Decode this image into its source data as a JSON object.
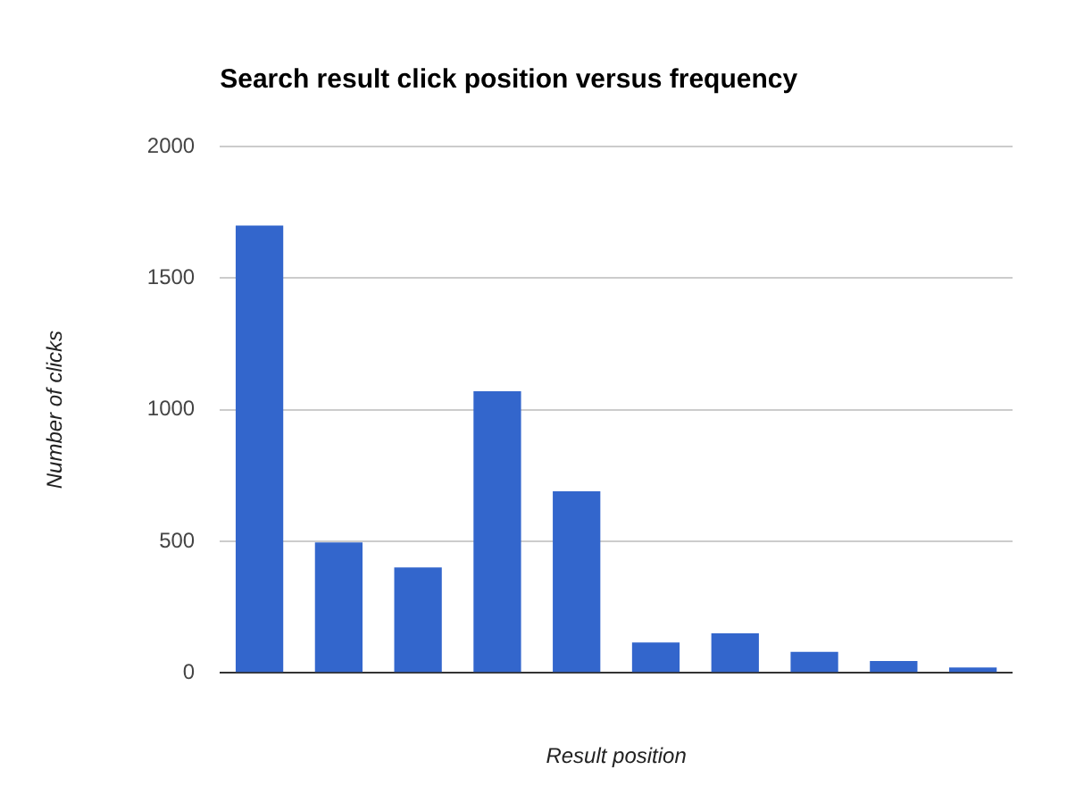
{
  "chart_data": {
    "type": "bar",
    "title": "Search result click position versus frequency",
    "xlabel": "Result position",
    "ylabel": "Number of clicks",
    "categories": [
      null,
      null,
      null,
      null,
      null,
      null,
      null,
      null,
      null,
      null
    ],
    "values": [
      1700,
      495,
      400,
      1070,
      690,
      115,
      150,
      80,
      45,
      20
    ],
    "color": "#3366cc",
    "ylim": [
      0,
      2000
    ],
    "yticks": [
      0,
      500,
      1000,
      1500,
      2000
    ],
    "grid": "y",
    "legend": false
  }
}
